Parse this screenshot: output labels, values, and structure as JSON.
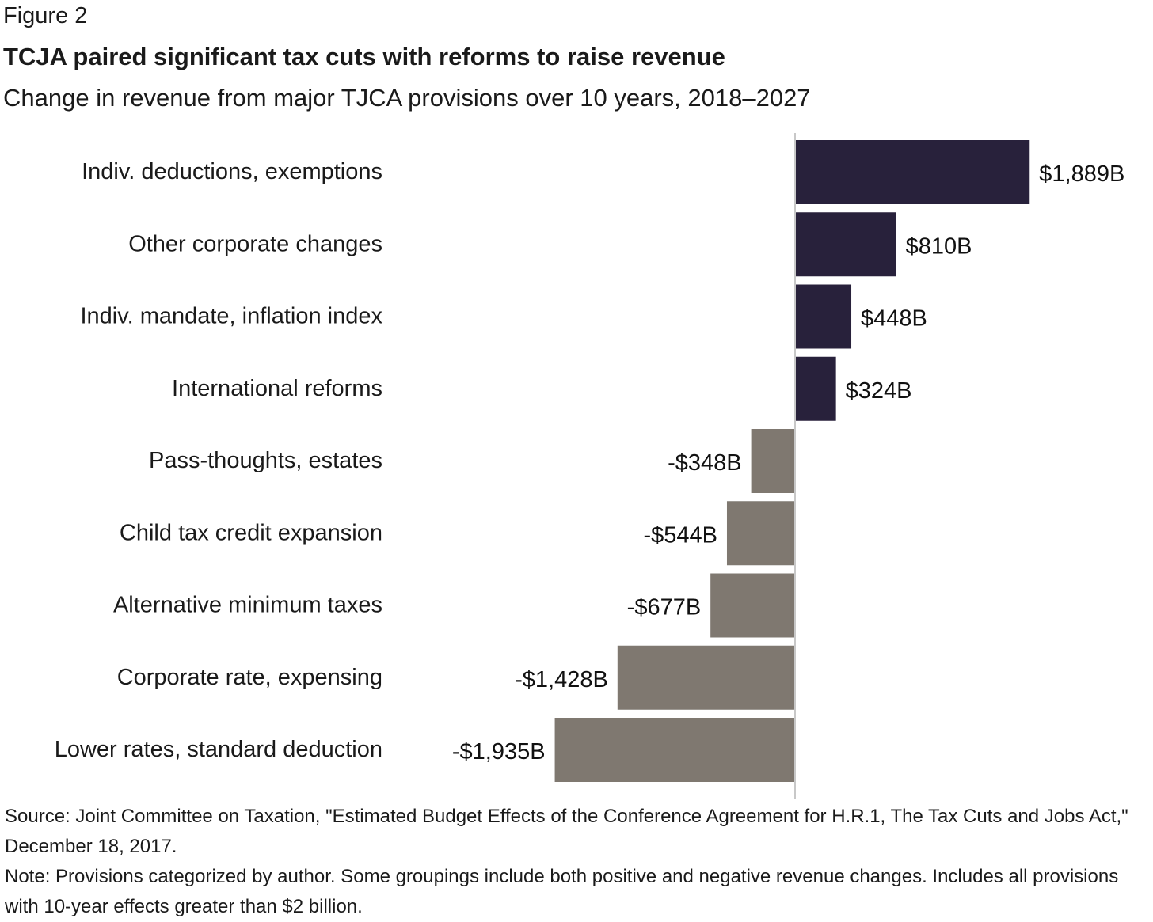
{
  "figure_label": "Figure 2",
  "chart_data": {
    "type": "bar",
    "orientation": "horizontal",
    "title": "TCJA paired significant tax cuts with reforms to raise revenue",
    "subtitle": "Change in revenue from major TJCA provisions over 10 years, 2018–2027",
    "categories": [
      "Indiv. deductions, exemptions",
      "Other corporate changes",
      "Indiv. mandate, inflation index",
      "International reforms",
      "Pass-thoughts, estates",
      "Child tax credit expansion",
      "Alternative minimum taxes",
      "Corporate rate, expensing",
      "Lower rates, standard deduction"
    ],
    "values": [
      1889,
      810,
      448,
      324,
      -348,
      -544,
      -677,
      -1428,
      -1935
    ],
    "value_labels": [
      "$1,889B",
      "$810B",
      "$448B",
      "$324B",
      "-$348B",
      "-$544B",
      "-$677B",
      "-$1,428B",
      "-$1,935B"
    ],
    "unit": "billions of dollars",
    "colors": {
      "positive": "#28213b",
      "negative": "#7f7870",
      "axis": "#c8c8c8"
    },
    "grid": false
  },
  "footer": {
    "source": "Source: Joint Committee on Taxation, \"Estimated Budget Effects of the Conference Agreement for H.R.1, The Tax Cuts and Jobs Act,\" December 18, 2017.",
    "note": "Note: Provisions categorized by author. Some groupings include both positive and negative revenue changes. Includes all provisions with 10-year effects greater than $2 billion."
  }
}
